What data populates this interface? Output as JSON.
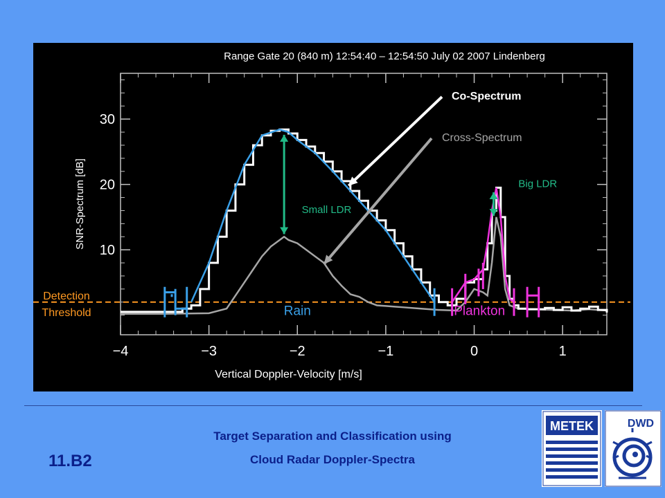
{
  "chart_data": {
    "type": "line",
    "title": "Range Gate 20 (840 m)  12:54:40 – 12:54:50  July 02 2007 Lindenberg",
    "xlabel": "Vertical Doppler-Velocity [m/s]",
    "ylabel": "SNR-Spectrum [dB]",
    "xlim": [
      -4,
      1.5
    ],
    "ylim": [
      -3,
      37
    ],
    "xticks": [
      -4,
      -3,
      -2,
      -1,
      0,
      1
    ],
    "xtick_labels": [
      "−4",
      "−3",
      "−2",
      "−1",
      "0",
      "1"
    ],
    "yticks": [
      10,
      20,
      30
    ],
    "ytick_labels": [
      "10",
      "20",
      "30"
    ],
    "grid": false,
    "detection_threshold": 2.0,
    "detection_threshold_label": [
      "Detection",
      "Threshold"
    ],
    "series": [
      {
        "name": "Co-Spectrum",
        "color": "#ffffff",
        "x": [
          -4.0,
          -3.5,
          -3.3,
          -3.2,
          -3.1,
          -3.0,
          -2.9,
          -2.8,
          -2.7,
          -2.6,
          -2.5,
          -2.4,
          -2.3,
          -2.2,
          -2.1,
          -2.0,
          -1.9,
          -1.8,
          -1.7,
          -1.6,
          -1.5,
          -1.4,
          -1.3,
          -1.2,
          -1.1,
          -1.0,
          -0.9,
          -0.8,
          -0.7,
          -0.6,
          -0.5,
          -0.4,
          -0.3,
          -0.2,
          -0.1,
          0.0,
          0.1,
          0.15,
          0.2,
          0.25,
          0.3,
          0.35,
          0.4,
          0.45,
          0.5,
          0.6,
          0.7,
          0.8,
          0.9,
          1.0,
          1.1,
          1.2,
          1.3,
          1.4,
          1.5
        ],
        "values": [
          0.5,
          0.5,
          1.0,
          1.5,
          4.0,
          8.0,
          12.0,
          16.0,
          20.0,
          23.0,
          26.0,
          27.5,
          28.2,
          28.4,
          27.8,
          26.8,
          25.8,
          24.8,
          23.5,
          22.0,
          20.5,
          19.0,
          17.5,
          16.0,
          14.5,
          13.0,
          11.0,
          9.0,
          7.0,
          5.0,
          3.0,
          2.0,
          1.5,
          2.5,
          5.0,
          5.5,
          7.0,
          11.0,
          16.0,
          19.5,
          15.0,
          6.0,
          2.5,
          1.5,
          1.0,
          0.9,
          0.9,
          1.1,
          0.8,
          1.2,
          0.7,
          1.0,
          1.3,
          0.8,
          0.4
        ]
      },
      {
        "name": "Cross-Spectrum",
        "color": "#a6a6a6",
        "x": [
          -4.0,
          -3.5,
          -3.0,
          -2.8,
          -2.6,
          -2.5,
          -2.4,
          -2.3,
          -2.2,
          -2.15,
          -2.1,
          -2.0,
          -1.9,
          -1.8,
          -1.7,
          -1.6,
          -1.5,
          -1.4,
          -1.3,
          -1.2,
          -1.1,
          -1.0,
          -0.9,
          -0.8,
          -0.6,
          -0.4,
          -0.2,
          -0.1,
          0.0,
          0.1,
          0.15,
          0.2,
          0.25,
          0.3,
          0.35,
          0.4,
          0.5,
          0.7,
          0.9,
          1.1,
          1.3,
          1.5
        ],
        "values": [
          0.2,
          0.2,
          0.3,
          1.0,
          5.0,
          7.0,
          9.0,
          10.5,
          11.5,
          12.0,
          11.5,
          11.0,
          10.0,
          9.0,
          8.0,
          6.0,
          4.5,
          3.2,
          2.8,
          2.0,
          1.5,
          1.4,
          1.3,
          1.2,
          1.0,
          0.8,
          0.7,
          2.0,
          4.0,
          3.5,
          3.0,
          8.0,
          15.0,
          12.0,
          4.0,
          1.5,
          1.0,
          0.9,
          0.8,
          0.7,
          0.9,
          0.7
        ]
      },
      {
        "name": "fit",
        "color": "#3aa0e8",
        "x": [
          -3.2,
          -3.0,
          -2.8,
          -2.6,
          -2.4,
          -2.2,
          -2.1,
          -2.0,
          -1.8,
          -1.6,
          -1.4,
          -1.2,
          -1.0,
          -0.8,
          -0.6,
          -0.45
        ],
        "values": [
          2.0,
          8.0,
          16.0,
          23.0,
          27.5,
          28.4,
          28.0,
          26.8,
          24.8,
          22.0,
          19.0,
          16.0,
          13.0,
          9.0,
          5.0,
          2.0
        ]
      },
      {
        "name": "fit",
        "color": "#ee33dd",
        "x": [
          -0.25,
          -0.1,
          0.0,
          0.1,
          0.15,
          0.2,
          0.25,
          0.3,
          0.35,
          0.4,
          0.45
        ],
        "values": [
          2.0,
          5.0,
          5.5,
          7.0,
          11.0,
          16.0,
          19.5,
          15.0,
          6.0,
          2.5,
          2.0
        ]
      }
    ],
    "annotations": [
      {
        "text": "Co-Spectrum",
        "color": "#ffffff"
      },
      {
        "text": "Cross-Spectrum",
        "color": "#a6a6a6"
      },
      {
        "text": "Small LDR",
        "color": "#22bb88"
      },
      {
        "text": "Big LDR",
        "color": "#22bb88"
      },
      {
        "text": "Rain",
        "color": "#3aa0e8"
      },
      {
        "text": "Plankton",
        "color": "#ee33dd"
      }
    ],
    "colors": {
      "panel": "#000000",
      "axes": "#c0c0c0",
      "threshold": "#ff9922",
      "ldr_arrow": "#22bb88",
      "rain_markers": "#3aa0e8",
      "plankton_markers": "#ee33dd"
    }
  },
  "footer": {
    "slide_number": "11.B2",
    "line1": "Target Separation and Classification using",
    "line2": "Cloud Radar Doppler-Spectra"
  },
  "logos": {
    "metek": "METEK",
    "dwd": "DWD"
  },
  "colors": {
    "background": "#5b9bf5",
    "footer_text": "#0b1f8a"
  }
}
